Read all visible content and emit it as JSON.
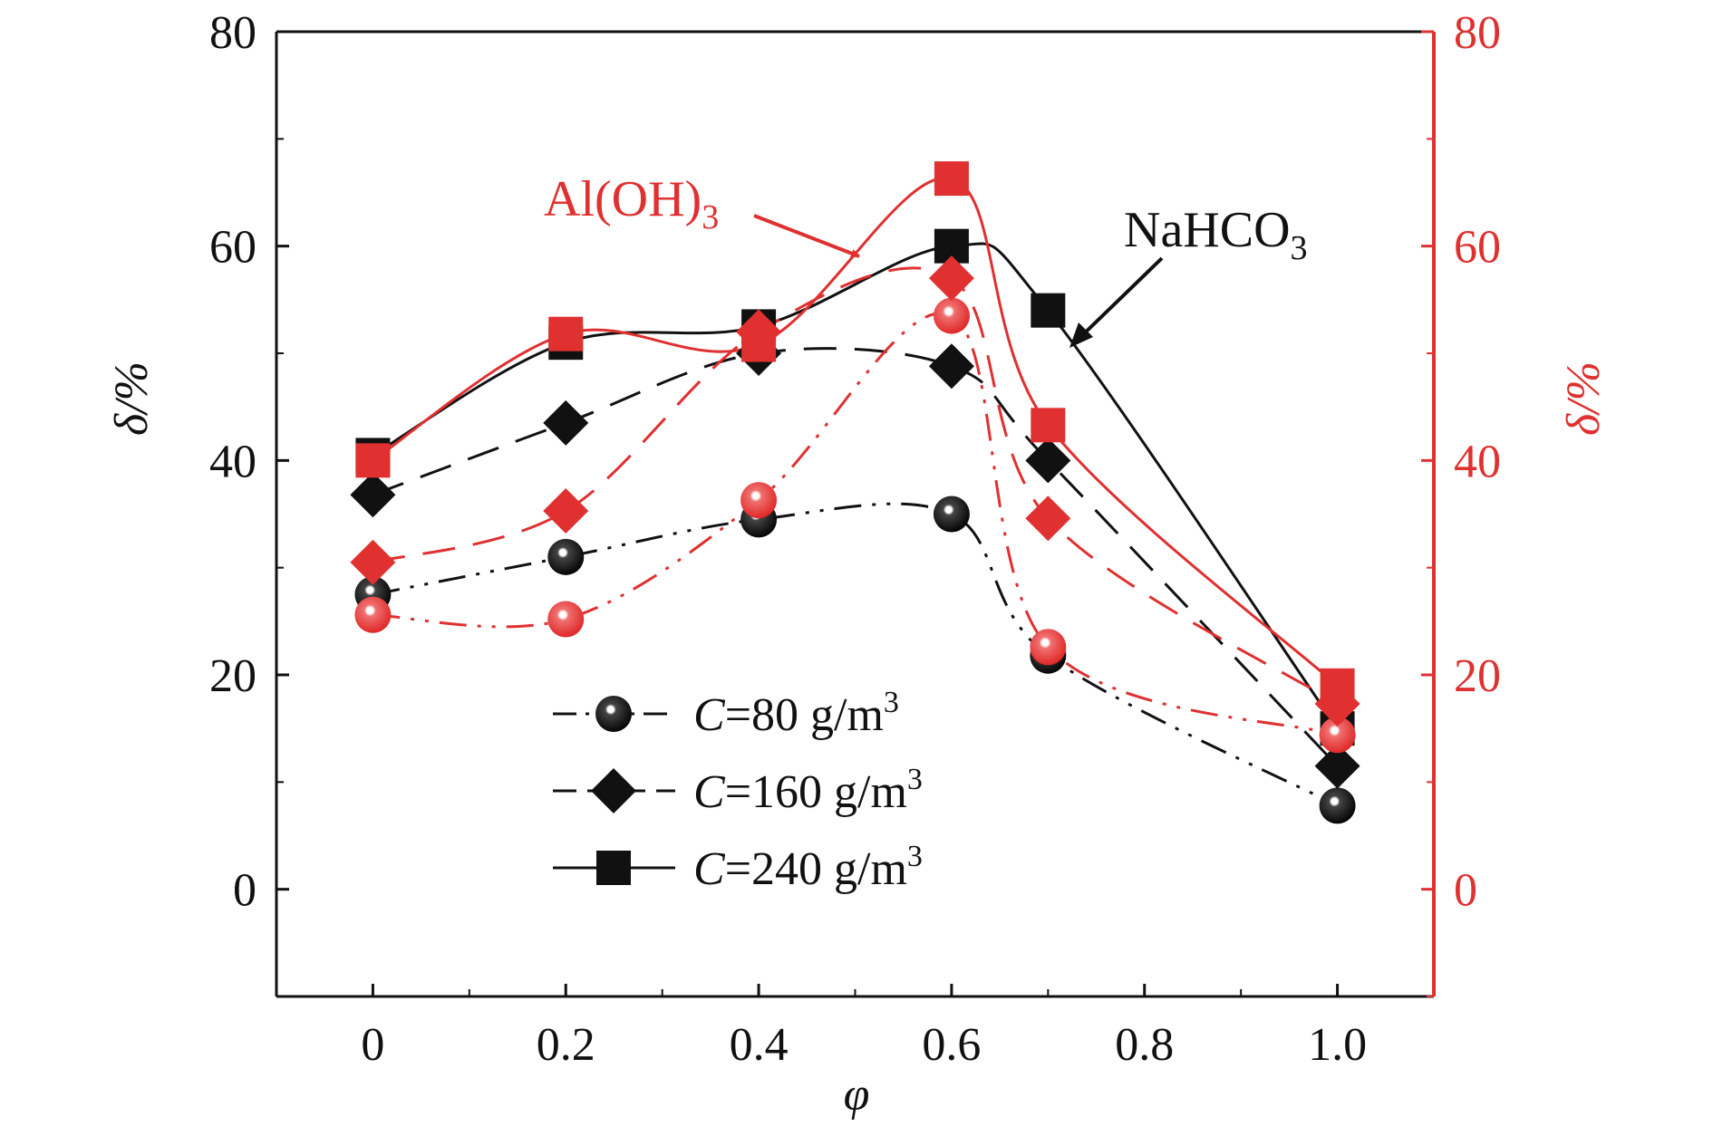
{
  "chart_data": {
    "type": "scatter",
    "title": "",
    "xlabel": "φ",
    "ylabel_left": "δ/%",
    "ylabel_right": "δ/%",
    "xlim": [
      -0.1,
      1.1
    ],
    "ylim": [
      -10,
      80
    ],
    "x_ticks": [
      0,
      0.2,
      0.4,
      0.6,
      0.8,
      1.0
    ],
    "x_tick_labels": [
      "0",
      "0.2",
      "0.4",
      "0.6",
      "0.8",
      "1.0"
    ],
    "y_ticks": [
      0,
      20,
      40,
      60,
      80
    ],
    "y_tick_labels": [
      "0",
      "20",
      "40",
      "60",
      "80"
    ],
    "grid": false,
    "legend_position": "lower-left",
    "legend": [
      {
        "prefix": "C",
        "text": "=80 g/m",
        "sup": "3",
        "marker": "circle",
        "line": "dash-dot-dot"
      },
      {
        "prefix": "C",
        "text": "=160 g/m",
        "sup": "3",
        "marker": "diamond",
        "line": "dash"
      },
      {
        "prefix": "C",
        "text": "=240 g/m",
        "sup": "3",
        "marker": "square",
        "line": "solid"
      }
    ],
    "annotations": [
      {
        "main": "Al(OH)",
        "sub": "3",
        "color": "#e03030"
      },
      {
        "main": "NaHCO",
        "sub": "3",
        "color": "#111111"
      }
    ],
    "x": [
      0,
      0.2,
      0.4,
      0.6,
      0.7,
      1.0
    ],
    "series": [
      {
        "group": "NaHCO3",
        "concentration": 80,
        "marker": "circle",
        "color": "#111111",
        "values": [
          27.5,
          31,
          34.5,
          35,
          21.8,
          7.8
        ]
      },
      {
        "group": "NaHCO3",
        "concentration": 160,
        "marker": "diamond",
        "color": "#111111",
        "values": [
          36.8,
          43.5,
          50,
          48.8,
          40,
          11.5
        ]
      },
      {
        "group": "NaHCO3",
        "concentration": 240,
        "marker": "square",
        "color": "#111111",
        "values": [
          40.5,
          51,
          52.5,
          60,
          54,
          15
        ]
      },
      {
        "group": "Al(OH)3",
        "concentration": 80,
        "marker": "circle",
        "color": "#e03030",
        "values": [
          25.6,
          25.2,
          36.3,
          53.5,
          22.6,
          14.4
        ]
      },
      {
        "group": "Al(OH)3",
        "concentration": 160,
        "marker": "diamond",
        "color": "#e03030",
        "values": [
          30.5,
          35.3,
          52,
          57,
          34.6,
          17.3
        ]
      },
      {
        "group": "Al(OH)3",
        "concentration": 240,
        "marker": "square",
        "color": "#e03030",
        "values": [
          40,
          51.8,
          50.8,
          66.3,
          43.3,
          19
        ]
      }
    ]
  }
}
